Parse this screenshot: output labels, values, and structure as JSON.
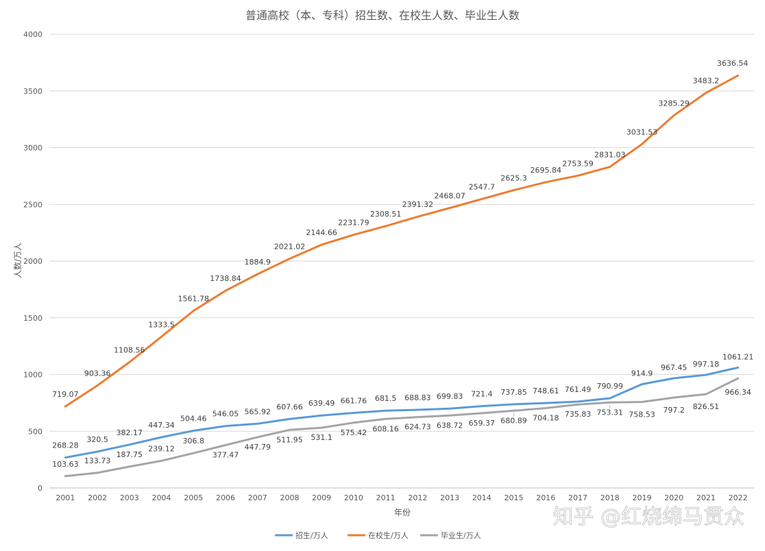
{
  "chart_data": {
    "type": "line",
    "title": "普通高校（本、专科）招生数、在校生人数、毕业生人数",
    "xlabel": "年份",
    "ylabel": "人数/万人",
    "ylim": [
      0,
      4000
    ],
    "yticks": [
      0,
      500,
      1000,
      1500,
      2000,
      2500,
      3000,
      3500,
      4000
    ],
    "grid": true,
    "legend_position": "bottom",
    "categories": [
      "2001",
      "2002",
      "2003",
      "2004",
      "2005",
      "2006",
      "2007",
      "2008",
      "2009",
      "2010",
      "2011",
      "2012",
      "2013",
      "2014",
      "2015",
      "2016",
      "2017",
      "2018",
      "2019",
      "2020",
      "2021",
      "2022"
    ],
    "series": [
      {
        "name": "招生/万人",
        "color": "#5B9BD5",
        "values": [
          268.28,
          320.5,
          382.17,
          447.34,
          504.46,
          546.05,
          565.92,
          607.66,
          639.49,
          661.76,
          681.5,
          688.83,
          699.83,
          721.4,
          737.85,
          748.61,
          761.49,
          790.99,
          914.9,
          967.45,
          997.18,
          1061.21
        ],
        "labels": [
          "268.28",
          "320.5",
          "382.17",
          "447.34",
          "504.46",
          "546.05",
          "565.92",
          "607.66",
          "639.49",
          "661.76",
          "681.5",
          "688.83",
          "699.83",
          "721.4",
          "737.85",
          "748.61",
          "761.49",
          "790.99",
          "914.9",
          "967.45",
          "997.18",
          "1061.21"
        ]
      },
      {
        "name": "在校生/万人",
        "color": "#ED7D31",
        "values": [
          719.07,
          903.36,
          1108.56,
          1333.5,
          1561.78,
          1738.84,
          1884.9,
          2021.02,
          2144.66,
          2231.79,
          2308.51,
          2391.32,
          2468.07,
          2547.7,
          2625.3,
          2695.84,
          2753.59,
          2831.03,
          3031.53,
          3285.29,
          3483.2,
          3636.54
        ],
        "labels": [
          "719.07",
          "903.36",
          "1108.56",
          "1333.5",
          "1561.78",
          "1738.84",
          "1884.9",
          "2021.02",
          "2144.66",
          "2231.79",
          "2308.51",
          "2391.32",
          "2468.07",
          "2547.7",
          "2625.3",
          "2695.84",
          "2753.59",
          "2831.03",
          "3031.53",
          "3285.29",
          "3483.2",
          "3636.54"
        ]
      },
      {
        "name": "毕业生/万人",
        "color": "#A5A5A5",
        "values": [
          103.63,
          133.73,
          187.75,
          239.12,
          306.8,
          377.47,
          447.79,
          511.95,
          531.1,
          575.42,
          608.16,
          624.73,
          638.72,
          659.37,
          680.89,
          704.18,
          735.83,
          753.31,
          758.53,
          797.2,
          826.51,
          966.34
        ],
        "labels": [
          "103.63",
          "133.73",
          "187.75",
          "239.12",
          "306.8",
          "377.47",
          "447.79",
          "511.95",
          "531.1",
          "575.42",
          "608.16",
          "624.73",
          "638.72",
          "659.37",
          "680.89",
          "704.18",
          "735.83",
          "753.31",
          "758.53",
          "797.2",
          "826.51",
          "966.34"
        ]
      }
    ]
  },
  "watermark": {
    "text": "知乎 @红烧绵马贯众"
  }
}
